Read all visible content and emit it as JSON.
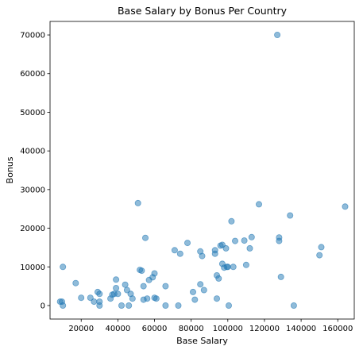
{
  "chart_data": {
    "type": "scatter",
    "title": "Base Salary by Bonus Per Country",
    "xlabel": "Base Salary",
    "ylabel": "Bonus",
    "xlim": [
      3000,
      169000
    ],
    "ylim": [
      -3500,
      73500
    ],
    "xticks": [
      20000,
      40000,
      60000,
      80000,
      100000,
      120000,
      140000,
      160000
    ],
    "yticks": [
      0,
      10000,
      20000,
      30000,
      40000,
      50000,
      60000,
      70000
    ],
    "xtick_labels": [
      "20000",
      "40000",
      "60000",
      "80000",
      "100000",
      "120000",
      "140000",
      "160000"
    ],
    "ytick_labels": [
      "0",
      "10000",
      "20000",
      "30000",
      "40000",
      "50000",
      "60000",
      "70000"
    ],
    "grid": false,
    "marker_color": "#1f77b4",
    "points": [
      {
        "x": 8500,
        "y": 1000
      },
      {
        "x": 9500,
        "y": 1000
      },
      {
        "x": 10000,
        "y": 0
      },
      {
        "x": 10000,
        "y": 10000
      },
      {
        "x": 17000,
        "y": 5800
      },
      {
        "x": 20000,
        "y": 2000
      },
      {
        "x": 25000,
        "y": 2000
      },
      {
        "x": 27000,
        "y": 1000
      },
      {
        "x": 29000,
        "y": 3500
      },
      {
        "x": 30000,
        "y": 3000
      },
      {
        "x": 30000,
        "y": 1000
      },
      {
        "x": 30000,
        "y": 0
      },
      {
        "x": 36000,
        "y": 1800
      },
      {
        "x": 37000,
        "y": 2800
      },
      {
        "x": 38000,
        "y": 3000
      },
      {
        "x": 39000,
        "y": 4500
      },
      {
        "x": 39000,
        "y": 6700
      },
      {
        "x": 40000,
        "y": 3000
      },
      {
        "x": 42000,
        "y": 0
      },
      {
        "x": 44000,
        "y": 5400
      },
      {
        "x": 45000,
        "y": 4000
      },
      {
        "x": 46000,
        "y": 0
      },
      {
        "x": 47000,
        "y": 3000
      },
      {
        "x": 48000,
        "y": 1800
      },
      {
        "x": 51000,
        "y": 26500
      },
      {
        "x": 52000,
        "y": 9200
      },
      {
        "x": 53000,
        "y": 9000
      },
      {
        "x": 54000,
        "y": 5000
      },
      {
        "x": 54000,
        "y": 1500
      },
      {
        "x": 55000,
        "y": 17500
      },
      {
        "x": 56000,
        "y": 1800
      },
      {
        "x": 57000,
        "y": 6600
      },
      {
        "x": 59000,
        "y": 7300
      },
      {
        "x": 60000,
        "y": 8300
      },
      {
        "x": 60000,
        "y": 2000
      },
      {
        "x": 61000,
        "y": 1800
      },
      {
        "x": 66000,
        "y": 0
      },
      {
        "x": 66000,
        "y": 5000
      },
      {
        "x": 71000,
        "y": 14300
      },
      {
        "x": 73000,
        "y": 0
      },
      {
        "x": 74000,
        "y": 13400
      },
      {
        "x": 78000,
        "y": 16200
      },
      {
        "x": 81000,
        "y": 3500
      },
      {
        "x": 82000,
        "y": 1500
      },
      {
        "x": 85000,
        "y": 14000
      },
      {
        "x": 85000,
        "y": 5500
      },
      {
        "x": 86000,
        "y": 12800
      },
      {
        "x": 87000,
        "y": 4000
      },
      {
        "x": 93000,
        "y": 14300
      },
      {
        "x": 93000,
        "y": 13400
      },
      {
        "x": 94000,
        "y": 7800
      },
      {
        "x": 94000,
        "y": 1800
      },
      {
        "x": 95000,
        "y": 7000
      },
      {
        "x": 96000,
        "y": 15500
      },
      {
        "x": 97000,
        "y": 15700
      },
      {
        "x": 97000,
        "y": 10800
      },
      {
        "x": 98000,
        "y": 9800
      },
      {
        "x": 99000,
        "y": 14800
      },
      {
        "x": 99500,
        "y": 10000
      },
      {
        "x": 100000,
        "y": 10000
      },
      {
        "x": 100500,
        "y": 0
      },
      {
        "x": 102000,
        "y": 21800
      },
      {
        "x": 103000,
        "y": 10000
      },
      {
        "x": 104000,
        "y": 16700
      },
      {
        "x": 109000,
        "y": 16800
      },
      {
        "x": 110000,
        "y": 10500
      },
      {
        "x": 112000,
        "y": 14800
      },
      {
        "x": 113000,
        "y": 17700
      },
      {
        "x": 117000,
        "y": 26200
      },
      {
        "x": 127000,
        "y": 70000
      },
      {
        "x": 128000,
        "y": 17600
      },
      {
        "x": 128000,
        "y": 16700
      },
      {
        "x": 129000,
        "y": 7400
      },
      {
        "x": 134000,
        "y": 23300
      },
      {
        "x": 136000,
        "y": 0
      },
      {
        "x": 150000,
        "y": 13000
      },
      {
        "x": 151000,
        "y": 15100
      },
      {
        "x": 164000,
        "y": 25600
      }
    ]
  }
}
